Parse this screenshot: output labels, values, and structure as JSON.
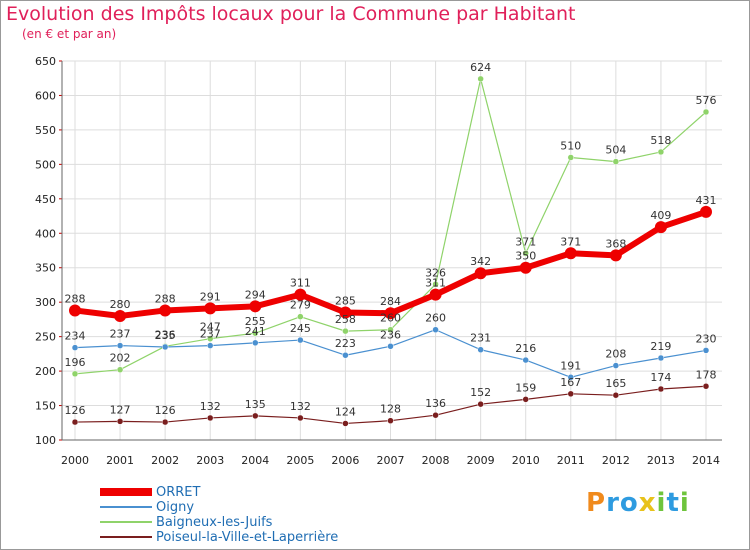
{
  "title": "Evolution des Impôts locaux pour la Commune par Habitant",
  "subtitle": "(en € et par an)",
  "logo": {
    "letters": [
      "P",
      "r",
      "o",
      "x",
      "i",
      "t",
      "i"
    ],
    "colors": [
      "#f08a1c",
      "#2e9be0",
      "#2e9be0",
      "#e8c21a",
      "#6ec43c",
      "#2e9be0",
      "#6ec43c"
    ]
  },
  "chart_data": {
    "type": "line",
    "x": [
      "2000",
      "2001",
      "2002",
      "2003",
      "2004",
      "2005",
      "2006",
      "2007",
      "2008",
      "2009",
      "2010",
      "2011",
      "2012",
      "2013",
      "2014"
    ],
    "ylim": [
      100,
      650
    ],
    "yticks": [
      100,
      150,
      200,
      250,
      300,
      350,
      400,
      450,
      500,
      550,
      600,
      650
    ],
    "grid": true,
    "legend_position": "bottom-left",
    "series": [
      {
        "name": "Poiseul-la-Ville-et-Laperrière",
        "color": "#7a1e1e",
        "width": 1.2,
        "values": [
          126,
          127,
          126,
          132,
          135,
          132,
          124,
          128,
          136,
          152,
          159,
          167,
          165,
          174,
          178
        ]
      },
      {
        "name": "Baigneux-les-Juifs",
        "color": "#8fd36a",
        "width": 1.2,
        "values": [
          196,
          202,
          236,
          247,
          255,
          279,
          258,
          260,
          326,
          624,
          371,
          510,
          504,
          518,
          576
        ]
      },
      {
        "name": "Oigny",
        "color": "#4a90d0",
        "width": 1.2,
        "values": [
          234,
          237,
          235,
          237,
          241,
          245,
          223,
          236,
          260,
          231,
          216,
          191,
          208,
          219,
          230
        ]
      },
      {
        "name": "ORRET",
        "color": "#ee0000",
        "width": 6,
        "values": [
          288,
          280,
          288,
          291,
          294,
          311,
          285,
          284,
          311,
          342,
          350,
          371,
          368,
          409,
          431
        ]
      }
    ],
    "legend_order": [
      "ORRET",
      "Oigny",
      "Baigneux-les-Juifs",
      "Poiseul-la-Ville-et-Laperrière"
    ]
  }
}
